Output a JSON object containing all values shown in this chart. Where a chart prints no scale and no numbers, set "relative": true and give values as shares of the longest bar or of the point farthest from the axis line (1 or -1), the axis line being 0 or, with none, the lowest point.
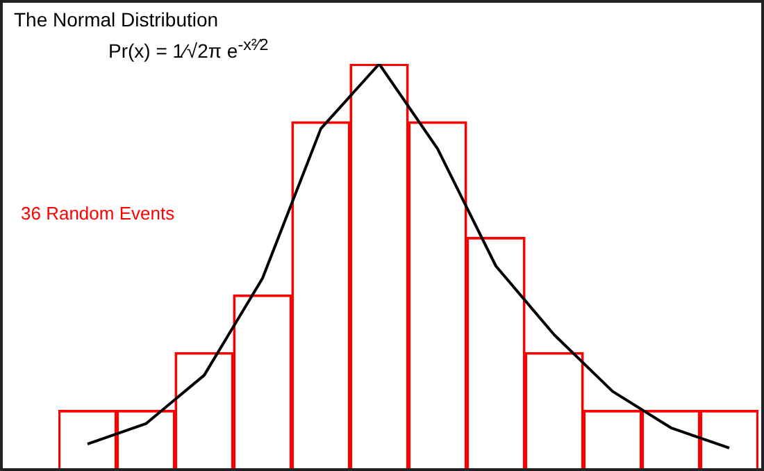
{
  "chart_data": [
    {
      "type": "bar",
      "title": "The Normal Distribution",
      "relative": true,
      "annotations": [
        "Pr(x) = 1⁄√2π e$^{-x²⁄2}$",
        "36 Random Events"
      ],
      "categories": [
        null,
        null,
        null,
        null,
        null,
        null,
        null,
        null,
        null,
        null,
        null,
        null
      ],
      "color": "#ff0000",
      "values": [
        0.143,
        0.143,
        0.286,
        0.429,
        0.857,
        1,
        0.857,
        0.571,
        0.286,
        0.143,
        0.143,
        0.143
      ]
    },
    {
      "type": "line",
      "relative": true,
      "marker": "none",
      "categories": [
        null,
        null,
        null,
        null,
        null,
        null,
        null,
        null,
        null,
        null,
        null,
        null
      ],
      "color": "#000000",
      "values": [
        0.06,
        0.11,
        0.23,
        0.47,
        0.84,
        1,
        0.79,
        0.5,
        0.33,
        0.19,
        0.1,
        0.05
      ]
    }
  ]
}
